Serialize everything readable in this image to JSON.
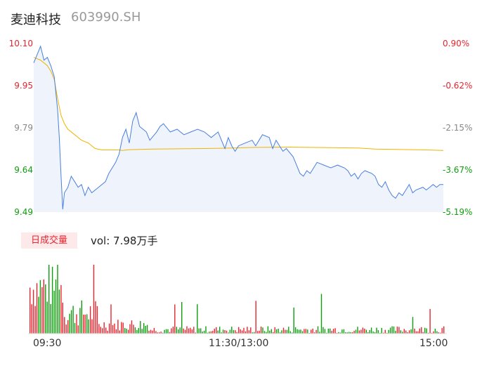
{
  "header": {
    "name": "麦迪科技",
    "code": "603990.SH"
  },
  "price_axis": {
    "left_labels": [
      "10.10",
      "9.95",
      "9.79",
      "9.64",
      "9.49"
    ],
    "right_labels": [
      "0.90%",
      "-0.62%",
      "-2.15%",
      "-3.67%",
      "-5.19%"
    ],
    "label_colors": [
      "#e8242e",
      "#e8242e",
      "#888888",
      "#0f9d0f",
      "#0f9d0f"
    ]
  },
  "volume": {
    "badge": "日成交量",
    "text": "vol: 7.98万手"
  },
  "time_labels": [
    "09:30",
    "11:30/13:00",
    "15:00"
  ],
  "colors": {
    "price_line": "#4a7fe0",
    "avg_line": "#f0b400",
    "up": "#e8242e",
    "down": "#0f9d0f",
    "area": "#eef3fc"
  },
  "chart_data": {
    "type": "line",
    "title": "",
    "ylim": [
      9.49,
      10.1
    ],
    "y_ticks": [
      10.1,
      9.95,
      9.79,
      9.64,
      9.49
    ],
    "pct_ticks": [
      "0.90%",
      "-0.62%",
      "-2.15%",
      "-3.67%",
      "-5.19%"
    ],
    "x_ticks": [
      "09:30",
      "11:30/13:00",
      "15:00"
    ],
    "minutes_total": 240,
    "price_keypoints": [
      [
        0,
        10.03
      ],
      [
        2,
        10.06
      ],
      [
        4,
        10.09
      ],
      [
        6,
        10.04
      ],
      [
        8,
        10.05
      ],
      [
        10,
        10.02
      ],
      [
        12,
        9.98
      ],
      [
        14,
        9.86
      ],
      [
        15,
        9.76
      ],
      [
        16,
        9.62
      ],
      [
        17,
        9.5
      ],
      [
        18,
        9.56
      ],
      [
        20,
        9.58
      ],
      [
        22,
        9.62
      ],
      [
        24,
        9.6
      ],
      [
        26,
        9.58
      ],
      [
        28,
        9.59
      ],
      [
        30,
        9.55
      ],
      [
        32,
        9.58
      ],
      [
        34,
        9.56
      ],
      [
        38,
        9.58
      ],
      [
        42,
        9.6
      ],
      [
        44,
        9.63
      ],
      [
        46,
        9.65
      ],
      [
        48,
        9.67
      ],
      [
        50,
        9.7
      ],
      [
        52,
        9.76
      ],
      [
        54,
        9.79
      ],
      [
        56,
        9.74
      ],
      [
        58,
        9.82
      ],
      [
        60,
        9.85
      ],
      [
        62,
        9.8
      ],
      [
        64,
        9.79
      ],
      [
        66,
        9.78
      ],
      [
        68,
        9.75
      ],
      [
        72,
        9.78
      ],
      [
        74,
        9.8
      ],
      [
        76,
        9.81
      ],
      [
        80,
        9.78
      ],
      [
        84,
        9.79
      ],
      [
        88,
        9.77
      ],
      [
        92,
        9.78
      ],
      [
        96,
        9.79
      ],
      [
        100,
        9.78
      ],
      [
        104,
        9.76
      ],
      [
        108,
        9.78
      ],
      [
        110,
        9.75
      ],
      [
        112,
        9.72
      ],
      [
        114,
        9.76
      ],
      [
        116,
        9.73
      ],
      [
        118,
        9.71
      ],
      [
        120,
        9.73
      ],
      [
        124,
        9.74
      ],
      [
        128,
        9.75
      ],
      [
        130,
        9.73
      ],
      [
        132,
        9.75
      ],
      [
        134,
        9.77
      ],
      [
        138,
        9.76
      ],
      [
        140,
        9.72
      ],
      [
        142,
        9.75
      ],
      [
        144,
        9.73
      ],
      [
        146,
        9.71
      ],
      [
        148,
        9.72
      ],
      [
        152,
        9.69
      ],
      [
        154,
        9.66
      ],
      [
        156,
        9.63
      ],
      [
        158,
        9.62
      ],
      [
        160,
        9.64
      ],
      [
        162,
        9.63
      ],
      [
        164,
        9.65
      ],
      [
        166,
        9.67
      ],
      [
        170,
        9.66
      ],
      [
        174,
        9.65
      ],
      [
        178,
        9.66
      ],
      [
        182,
        9.65
      ],
      [
        184,
        9.64
      ],
      [
        186,
        9.62
      ],
      [
        188,
        9.63
      ],
      [
        190,
        9.61
      ],
      [
        192,
        9.63
      ],
      [
        194,
        9.64
      ],
      [
        198,
        9.63
      ],
      [
        200,
        9.62
      ],
      [
        202,
        9.59
      ],
      [
        204,
        9.58
      ],
      [
        206,
        9.6
      ],
      [
        208,
        9.57
      ],
      [
        210,
        9.55
      ],
      [
        212,
        9.54
      ],
      [
        214,
        9.56
      ],
      [
        216,
        9.55
      ],
      [
        218,
        9.57
      ],
      [
        220,
        9.59
      ],
      [
        222,
        9.56
      ],
      [
        224,
        9.57
      ],
      [
        228,
        9.58
      ],
      [
        230,
        9.57
      ],
      [
        232,
        9.58
      ],
      [
        234,
        9.59
      ],
      [
        236,
        9.58
      ],
      [
        238,
        9.59
      ],
      [
        240,
        9.59
      ]
    ],
    "avg_keypoints": [
      [
        0,
        10.05
      ],
      [
        4,
        10.04
      ],
      [
        8,
        10.02
      ],
      [
        10,
        10.0
      ],
      [
        12,
        9.97
      ],
      [
        14,
        9.9
      ],
      [
        16,
        9.84
      ],
      [
        18,
        9.81
      ],
      [
        20,
        9.79
      ],
      [
        24,
        9.77
      ],
      [
        28,
        9.75
      ],
      [
        32,
        9.74
      ],
      [
        36,
        9.72
      ],
      [
        40,
        9.715
      ],
      [
        50,
        9.715
      ],
      [
        52,
        9.713
      ],
      [
        56,
        9.716
      ],
      [
        70,
        9.718
      ],
      [
        100,
        9.72
      ],
      [
        110,
        9.721
      ],
      [
        130,
        9.724
      ],
      [
        150,
        9.725
      ],
      [
        190,
        9.722
      ],
      [
        200,
        9.718
      ],
      [
        230,
        9.715
      ],
      [
        240,
        9.713
      ]
    ],
    "volume_max": 100
  }
}
